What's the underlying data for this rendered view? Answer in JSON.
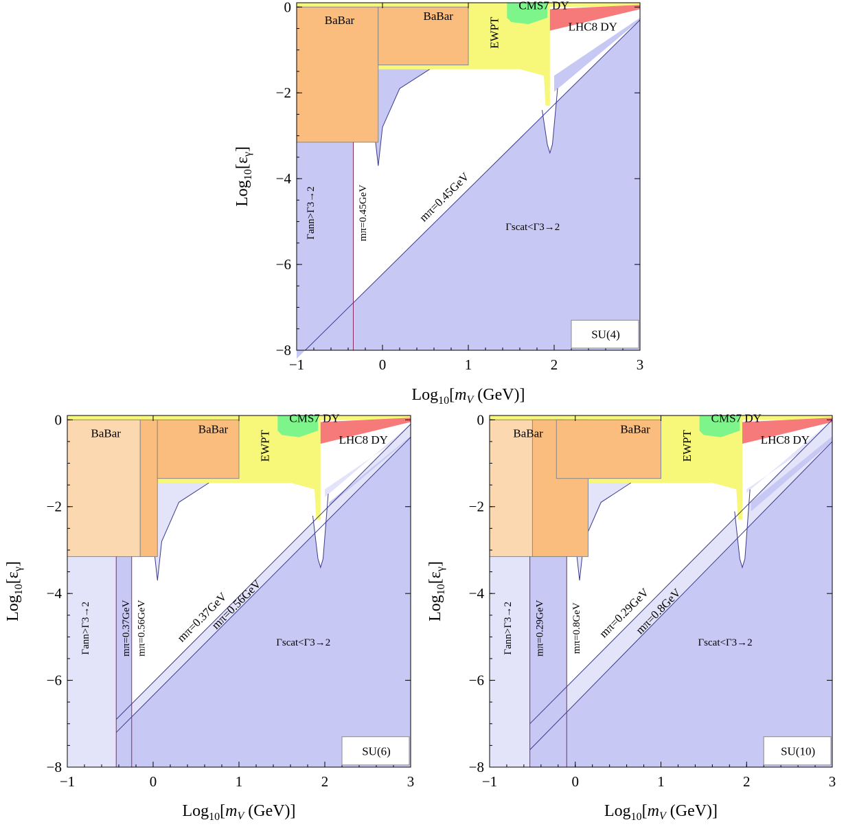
{
  "chart_data": [
    {
      "type": "area",
      "panel": "SU(4)",
      "xlabel": "Log10[mV (GeV)]",
      "ylabel": "Log10[εγ]",
      "xlim": [
        -1,
        3
      ],
      "ylim": [
        -8,
        0.1
      ],
      "xticks": [
        -1,
        0,
        1,
        2,
        3
      ],
      "yticks": [
        -8,
        -6,
        -4,
        -2,
        0
      ],
      "label_box": "SU(4)",
      "region_labels": {
        "babar1": "BaBar",
        "babar2": "BaBar",
        "ewpt": "EWPT",
        "cms": "CMS7 DY",
        "lhc": "LHC8 DY",
        "ann": "Γann>Γ3→2",
        "scat": "Γscat<Γ3→2"
      },
      "mass_lines": [
        {
          "label": "mπ=0.45GeV",
          "kind": "diagonal",
          "x0": -0.9,
          "y0": -8.0,
          "x1": 3.0,
          "y1": -0.3
        },
        {
          "label": "mπ=0.45GeV",
          "kind": "vertical",
          "x": -0.34
        }
      ],
      "regions": {
        "babar_left": {
          "x": [
            -1,
            -0.05
          ],
          "y": [
            -3.15,
            0
          ]
        },
        "babar_right": {
          "x": [
            -0.05,
            1.0
          ],
          "y": [
            -1.35,
            0
          ]
        },
        "ewpt_floor": -1.45,
        "ewpt_edge_x": 1.95,
        "ann_excluded_x_max": -0.34,
        "resonance_x": [
          -0.05,
          1.95
        ]
      }
    },
    {
      "type": "area",
      "panel": "SU(6)",
      "xlabel": "Log10[mV (GeV)]",
      "ylabel": "Log10[εγ]",
      "xlim": [
        -1,
        3
      ],
      "ylim": [
        -8,
        0.1
      ],
      "xticks": [
        -1,
        0,
        1,
        2,
        3
      ],
      "yticks": [
        -8,
        -6,
        -4,
        -2,
        0
      ],
      "label_box": "SU(6)",
      "region_labels": {
        "babar1": "BaBar",
        "babar2": "BaBar",
        "ewpt": "EWPT",
        "cms": "CMS7 DY",
        "lhc": "LHC8 DY",
        "ann": "Γann>Γ3→2",
        "scat": "Γscat<Γ3→2"
      },
      "mass_lines": [
        {
          "label": "mπ=0.37GeV",
          "kind": "diagonal",
          "x0": -0.43,
          "y0": -6.9,
          "x1": 3.0,
          "y1": -0.1
        },
        {
          "label": "mπ=0.56GeV",
          "kind": "diagonal",
          "x0": -0.43,
          "y0": -7.2,
          "x1": 3.0,
          "y1": -0.4
        },
        {
          "label": "mπ=0.37GeV",
          "kind": "vertical",
          "x": -0.43
        },
        {
          "label": "mπ=0.56GeV",
          "kind": "vertical",
          "x": -0.25
        }
      ]
    },
    {
      "type": "area",
      "panel": "SU(10)",
      "xlabel": "Log10[mV (GeV)]",
      "ylabel": "Log10[εγ]",
      "xlim": [
        -1,
        3
      ],
      "ylim": [
        -8,
        0.1
      ],
      "xticks": [
        -1,
        0,
        1,
        2,
        3
      ],
      "yticks": [
        -8,
        -6,
        -4,
        -2,
        0
      ],
      "label_box": "SU(10)",
      "region_labels": {
        "babar1": "BaBar",
        "babar2": "BaBar",
        "ewpt": "EWPT",
        "cms": "CMS7 DY",
        "lhc": "LHC8 DY",
        "ann": "Γann>Γ3→2",
        "scat": "Γscat<Γ3→2"
      },
      "mass_lines": [
        {
          "label": "mπ=0.29GeV",
          "kind": "diagonal",
          "x0": -0.53,
          "y0": -7.0,
          "x1": 3.0,
          "y1": 0.0
        },
        {
          "label": "mπ=0.8GeV",
          "kind": "diagonal",
          "x0": -0.53,
          "y0": -7.6,
          "x1": 3.0,
          "y1": -0.5
        },
        {
          "label": "mπ=0.29GeV",
          "kind": "vertical",
          "x": -0.53
        },
        {
          "label": "mπ=0.8GeV",
          "kind": "vertical",
          "x": -0.1
        }
      ]
    }
  ],
  "colors": {
    "blue_fill": "#c8c8f5",
    "light_blue_fill": "#e3e3f9",
    "babar_dark": "#fbbd7d",
    "babar_light": "#fcd8b0",
    "ewpt": "#f7f77a",
    "cms": "#7df58a",
    "lhc": "#f77a7a",
    "line": "#3a3a8c",
    "vline": "#8a2a5a"
  }
}
